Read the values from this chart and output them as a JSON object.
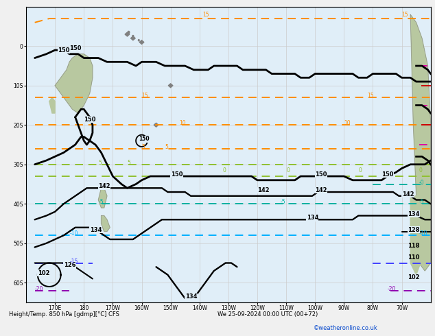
{
  "title": "Height/Temp. 850 hPa [gdmp][°C] CFS",
  "date_label": "We 25-09-2024 00:00 UTC (00+72)",
  "copyright": "©weatheronline.co.uk",
  "figsize": [
    6.34,
    4.9
  ],
  "dpi": 100,
  "bg_color": "#f0f0f0",
  "map_bg": "#e0eef8",
  "land_color_aus": "#b8c8a0",
  "land_color_nz": "#b8c8a0",
  "land_color_sa": "#b8c8a0",
  "grid_color": "#cccccc",
  "xlim": [
    160,
    300
  ],
  "ylim": [
    -65,
    10
  ],
  "xtick_locs": [
    170,
    180,
    190,
    200,
    210,
    220,
    230,
    240,
    250,
    260,
    270,
    280,
    290
  ],
  "xtick_labels": [
    "170E",
    "180",
    "170W",
    "160W",
    "150W",
    "140W",
    "130W",
    "120W",
    "110W",
    "100W",
    "90W",
    "80W",
    "70W"
  ],
  "ytick_locs": [
    -60,
    -50,
    -40,
    -30,
    -20,
    -10,
    0
  ],
  "ytick_labels": [
    "60S",
    "50S",
    "40S",
    "30S",
    "20S",
    "10S",
    "0"
  ],
  "height_lw": 2.0,
  "temp_lw": 1.4,
  "orange_color": "#ff8c00",
  "ygreen_color": "#90c030",
  "teal_color": "#00b0a0",
  "ltblue_color": "#00b0ff",
  "blue_color": "#4040ff",
  "purple_color": "#9000b0",
  "magenta_color": "#e000a0",
  "red_color": "#cc0000"
}
